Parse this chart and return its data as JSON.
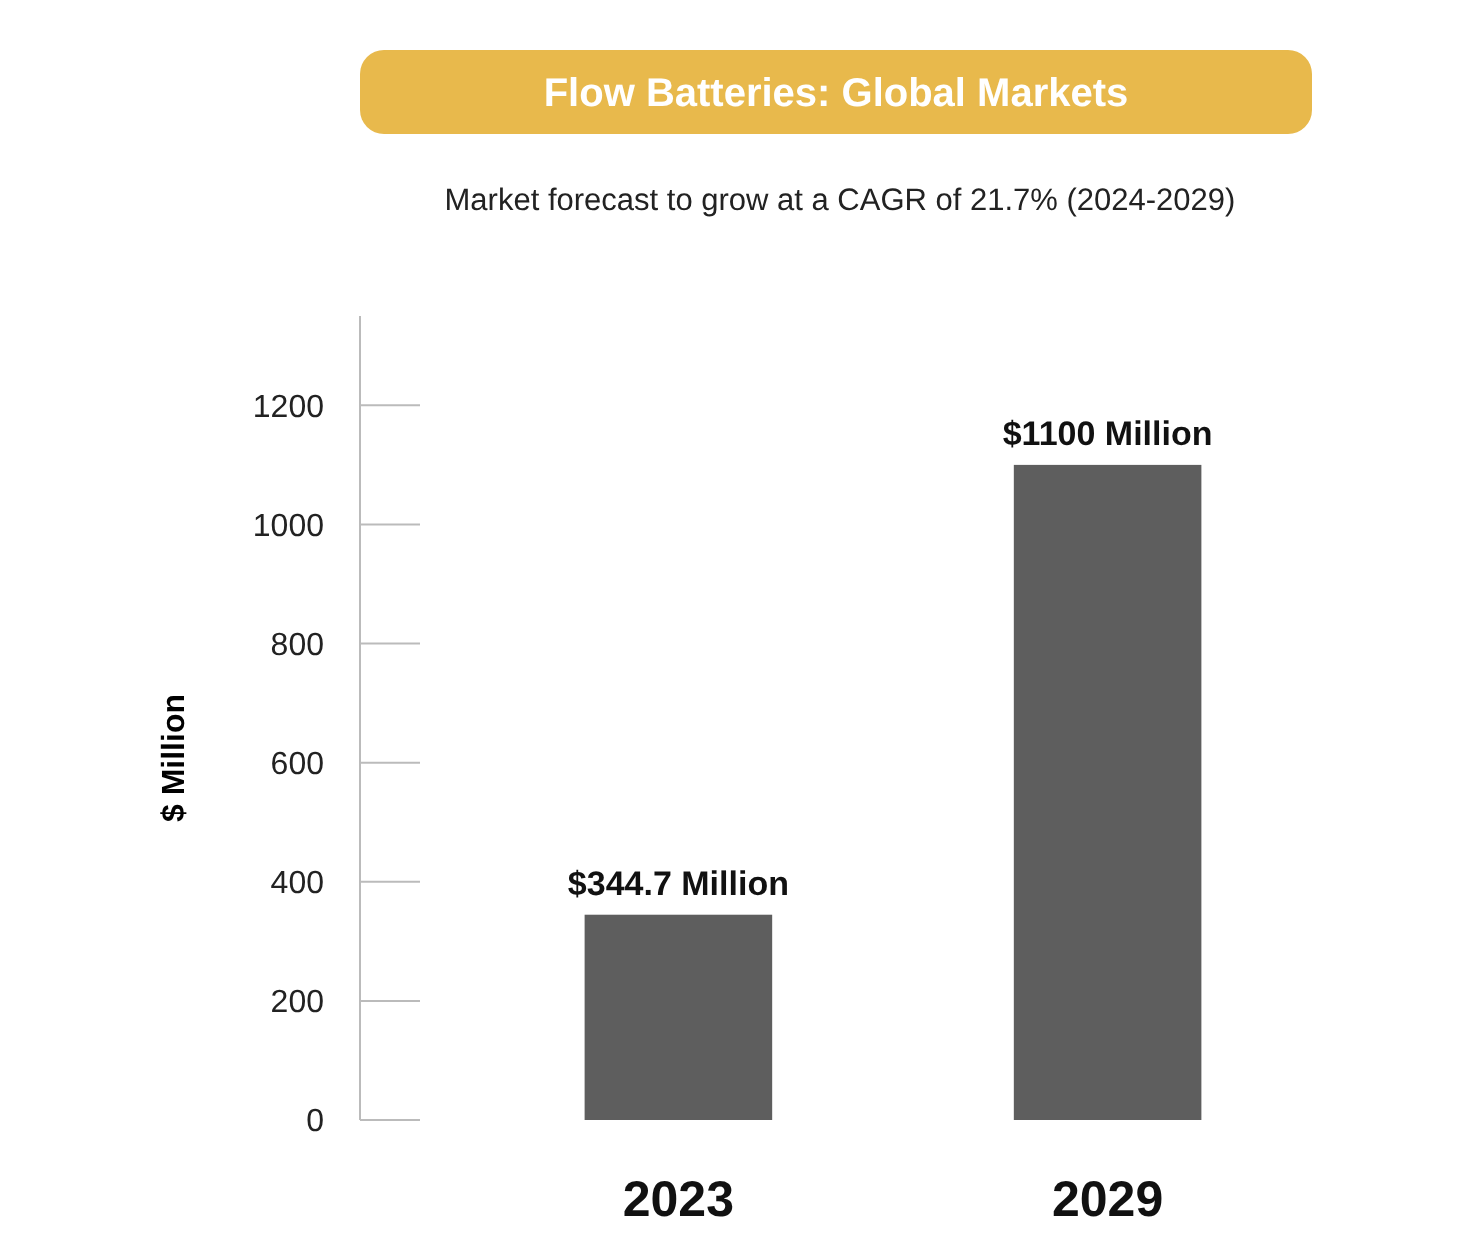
{
  "chart_data": {
    "type": "bar",
    "title": "Flow Batteries: Global Markets",
    "subtitle": "Market forecast to grow at a CAGR of 21.7% (2024-2029)",
    "ylabel": "$ Million",
    "categories": [
      "2023",
      "2029"
    ],
    "values": [
      344.7,
      1100
    ],
    "color": "#5e5e5e",
    "value_labels": [
      "$344.7 Million",
      "$1100 Million"
    ],
    "ylim": [
      0,
      1350
    ],
    "yticks": [
      0,
      200,
      400,
      600,
      800,
      1000,
      1200
    ],
    "grid": false
  }
}
